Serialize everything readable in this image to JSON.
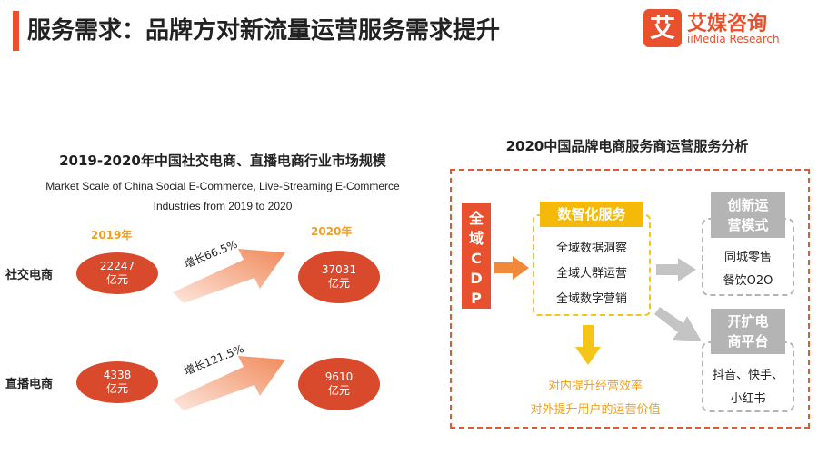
{
  "header": {
    "title": "服务需求：品牌方对新流量运营服务需求提升",
    "logo_mark": "艾",
    "logo_cn": "艾媒咨询",
    "logo_en": "iiMedia Research"
  },
  "left_chart": {
    "title": "2019-2020年中国社交电商、直播电商行业市场规模",
    "subtitle_line1": "Market Scale of China Social E-Commerce, Live-Streaming E-Commerce",
    "subtitle_line2": "Industries from 2019 to 2020",
    "year_2019": "2019年",
    "year_2020": "2020年",
    "rows": [
      {
        "label": "社交电商",
        "v2019": "22247",
        "v2020": "37031",
        "unit": "亿元",
        "growth": "增长66.5%"
      },
      {
        "label": "直播电商",
        "v2019": "4338",
        "v2020": "9610",
        "unit": "亿元",
        "growth": "增长121.5%"
      }
    ]
  },
  "right_diagram": {
    "title": "2020中国品牌电商服务商运营服务分析",
    "cdp_label": "全域CDP",
    "center_head": "数智化服务",
    "center_items": [
      "全域数据洞察",
      "全域人群运营",
      "全域数字营销"
    ],
    "box1_head": "创新运营模式",
    "box1_items": [
      "同城零售",
      "餐饮O2O"
    ],
    "box2_head": "开扩电商平台",
    "box2_items": [
      "抖音、快手、",
      "小红书"
    ],
    "bottom_line1": "对内提升经营效率",
    "bottom_line2": "对外提升用户的运营价值"
  },
  "colors": {
    "accent": "#e8502e",
    "ellipse": "#d9492c",
    "yellow": "#f5b90a",
    "grey": "#b4b4b4"
  }
}
